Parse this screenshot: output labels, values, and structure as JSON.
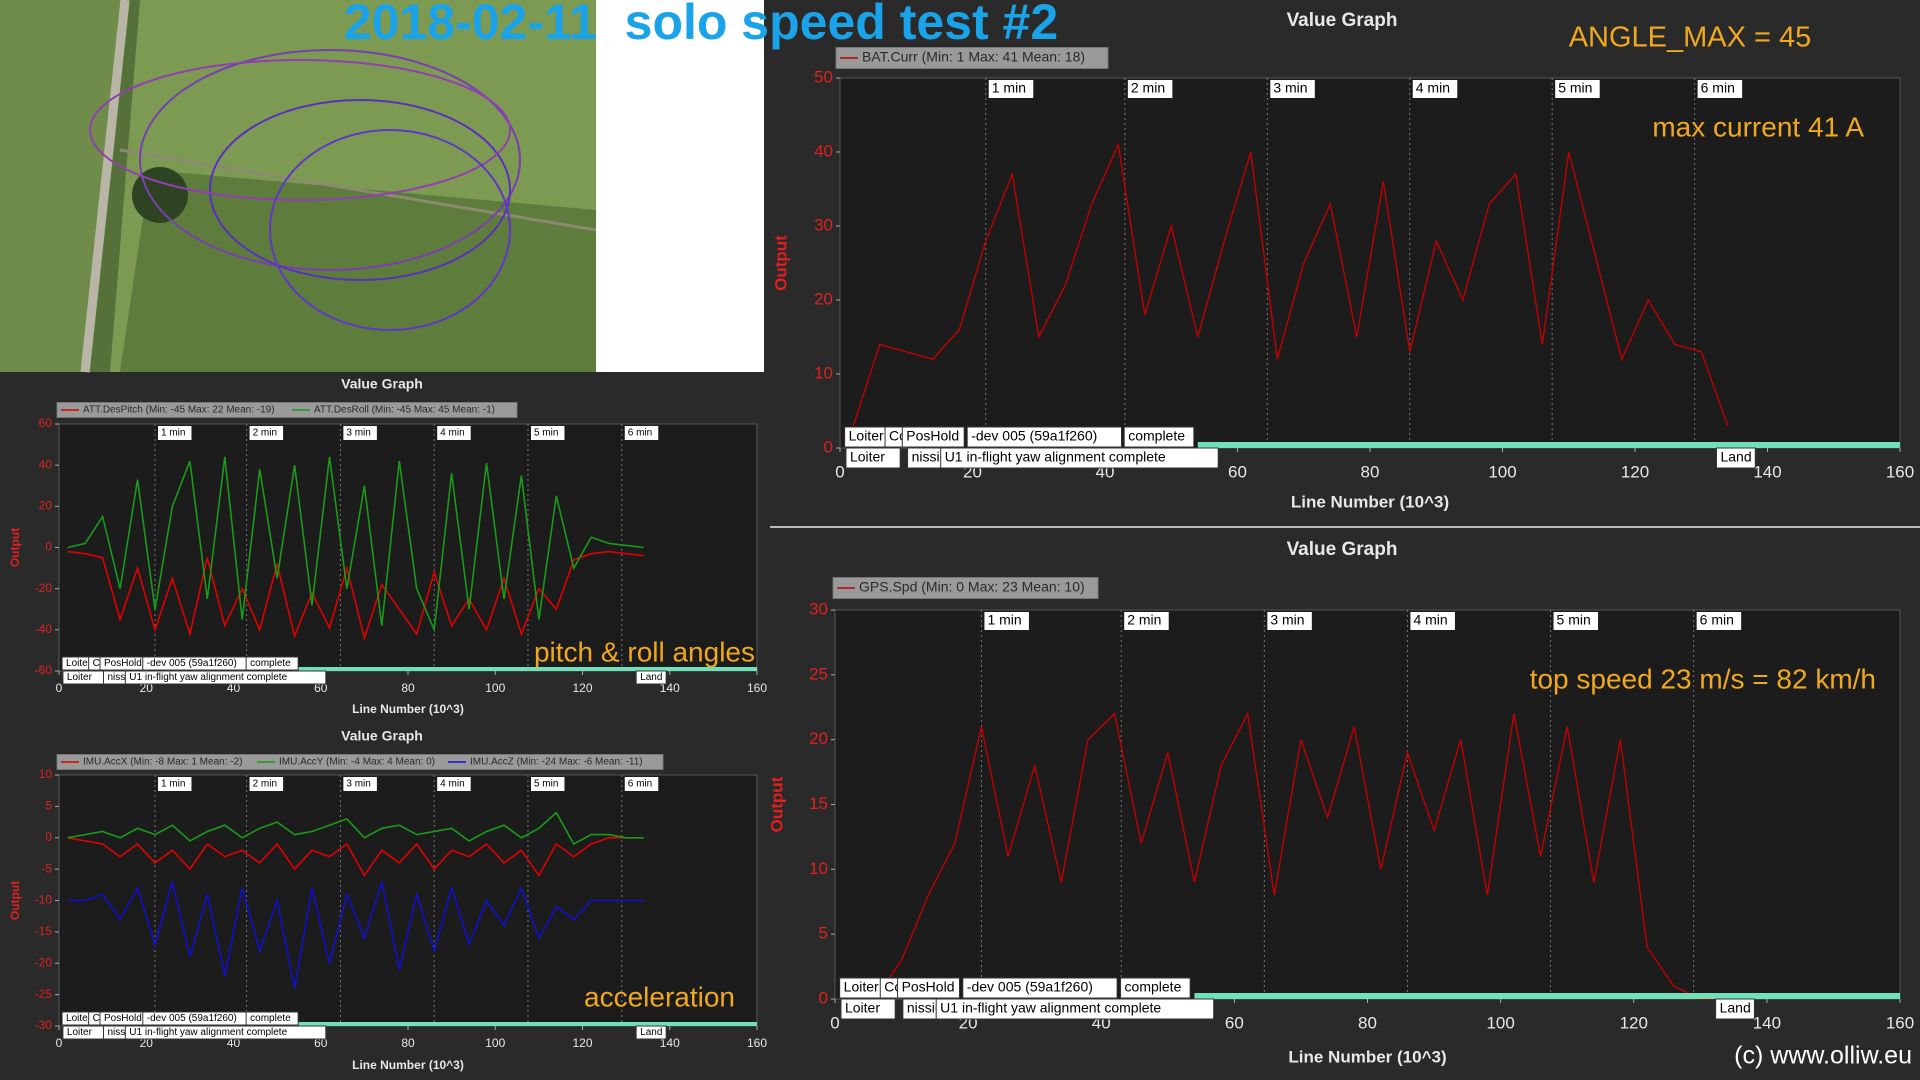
{
  "title": "2018-02-11  solo speed test #2",
  "angle_note": "ANGLE_MAX = 45",
  "credit": "(c) www.olliw.eu",
  "chart_data": [
    {
      "type": "line",
      "title": "Value Graph",
      "xlabel": "Line Number (10^3)",
      "ylabel": "Output",
      "annotation": "max current 41 A",
      "xlim": [
        0,
        160
      ],
      "xticks": [
        0,
        20,
        40,
        60,
        80,
        100,
        120,
        140,
        160
      ],
      "ylim": [
        0,
        50
      ],
      "yticks": [
        0,
        10,
        20,
        30,
        40,
        50
      ],
      "x": [
        2,
        6,
        10,
        14,
        18,
        22,
        26,
        30,
        34,
        38,
        42,
        46,
        50,
        54,
        58,
        62,
        66,
        70,
        74,
        78,
        82,
        86,
        90,
        94,
        98,
        102,
        106,
        110,
        114,
        118,
        122,
        126,
        130,
        134
      ],
      "series": [
        {
          "name": "BAT.Curr (Min: 1 Max: 41 Mean: 18)",
          "color": "#c00000",
          "values": [
            3,
            14,
            13,
            12,
            16,
            28,
            37,
            15,
            22,
            33,
            41,
            18,
            30,
            15,
            28,
            40,
            12,
            25,
            33,
            15,
            36,
            13,
            28,
            20,
            33,
            37,
            14,
            40,
            26,
            12,
            20,
            14,
            13,
            3
          ]
        }
      ],
      "markers": [
        {
          "x": 22,
          "label": "1 min"
        },
        {
          "x": 43,
          "label": "2 min"
        },
        {
          "x": 64.5,
          "label": "3 min"
        },
        {
          "x": 86,
          "label": "4 min"
        },
        {
          "x": 107.5,
          "label": "5 min"
        },
        {
          "x": 129,
          "label": "6 min"
        }
      ],
      "mode_bar": [
        54,
        160
      ],
      "events_row1": [
        {
          "x": 0.7,
          "label": "Loiter"
        },
        {
          "x": 6.8,
          "label": "Cc"
        },
        {
          "x": 9.4,
          "label": "PosHold"
        },
        {
          "x": 19.2,
          "label": "-dev 005 (59a1f260)"
        },
        {
          "x": 42.9,
          "label": "complete"
        }
      ],
      "events_row2": [
        {
          "x": 0.9,
          "label": "Loiter"
        },
        {
          "x": 10.2,
          "label": "nission"
        },
        {
          "x": 15.2,
          "label": "U1 in-flight yaw alignment complete"
        },
        {
          "x": 132.3,
          "label": "Land"
        }
      ]
    },
    {
      "type": "line",
      "title": "Value Graph",
      "xlabel": "Line Number (10^3)",
      "ylabel": "Output",
      "annotation": "top speed 23 m/s = 82 km/h",
      "xlim": [
        0,
        160
      ],
      "xticks": [
        0,
        20,
        40,
        60,
        80,
        100,
        120,
        140,
        160
      ],
      "ylim": [
        0,
        30
      ],
      "yticks": [
        0,
        5,
        10,
        15,
        20,
        25,
        30
      ],
      "x": [
        2,
        6,
        10,
        14,
        18,
        22,
        26,
        30,
        34,
        38,
        42,
        46,
        50,
        54,
        58,
        62,
        66,
        70,
        74,
        78,
        82,
        86,
        90,
        94,
        98,
        102,
        106,
        110,
        114,
        118,
        122,
        126,
        130,
        134
      ],
      "series": [
        {
          "name": "GPS.Spd (Min: 0 Max: 23 Mean: 10)",
          "color": "#c00000",
          "values": [
            0,
            0,
            3,
            8,
            12,
            21,
            11,
            18,
            9,
            20,
            22,
            12,
            19,
            9,
            18,
            22,
            8,
            20,
            14,
            21,
            10,
            19,
            13,
            20,
            8,
            22,
            11,
            21,
            9,
            20,
            4,
            1,
            0,
            0
          ]
        }
      ],
      "markers": [
        {
          "x": 22,
          "label": "1 min"
        },
        {
          "x": 43,
          "label": "2 min"
        },
        {
          "x": 64.5,
          "label": "3 min"
        },
        {
          "x": 86,
          "label": "4 min"
        },
        {
          "x": 107.5,
          "label": "5 min"
        },
        {
          "x": 129,
          "label": "6 min"
        }
      ],
      "mode_bar": [
        54,
        160
      ],
      "events_row1": [
        {
          "x": 0.7,
          "label": "Loiter"
        },
        {
          "x": 6.8,
          "label": "Cc"
        },
        {
          "x": 9.4,
          "label": "PosHold"
        },
        {
          "x": 19.2,
          "label": "-dev 005 (59a1f260)"
        },
        {
          "x": 42.9,
          "label": "complete"
        }
      ],
      "events_row2": [
        {
          "x": 0.9,
          "label": "Loiter"
        },
        {
          "x": 10.2,
          "label": "nission"
        },
        {
          "x": 15.2,
          "label": "U1 in-flight yaw alignment complete"
        },
        {
          "x": 132.3,
          "label": "Land"
        }
      ]
    },
    {
      "type": "line",
      "title": "Value Graph",
      "xlabel": "Line Number (10^3)",
      "ylabel": "Output",
      "annotation": "pitch & roll angles",
      "xlim": [
        0,
        160
      ],
      "xticks": [
        0,
        20,
        40,
        60,
        80,
        100,
        120,
        140,
        160
      ],
      "ylim": [
        -60,
        60
      ],
      "yticks": [
        -60,
        -40,
        -20,
        0,
        20,
        40,
        60
      ],
      "x": [
        2,
        6,
        10,
        14,
        18,
        22,
        26,
        30,
        34,
        38,
        42,
        46,
        50,
        54,
        58,
        62,
        66,
        70,
        74,
        78,
        82,
        86,
        90,
        94,
        98,
        102,
        106,
        110,
        114,
        118,
        122,
        126,
        130,
        134
      ],
      "series": [
        {
          "name": "ATT.DesPitch (Min: -45 Max: 22 Mean: -19)",
          "color": "#e00000",
          "values": [
            -2,
            -3,
            -5,
            -35,
            -10,
            -40,
            -15,
            -42,
            -5,
            -38,
            -20,
            -40,
            -8,
            -43,
            -22,
            -39,
            -10,
            -44,
            -18,
            -30,
            -42,
            -12,
            -38,
            -25,
            -40,
            -15,
            -42,
            -20,
            -30,
            -6,
            -3,
            -2,
            -3,
            -4
          ]
        },
        {
          "name": "ATT.DesRoll (Min: -45 Max: 45 Mean: -1)",
          "color": "#1a9a1a",
          "values": [
            0,
            2,
            15,
            -20,
            33,
            -30,
            20,
            42,
            -25,
            44,
            -35,
            38,
            -15,
            40,
            -28,
            44,
            -20,
            30,
            -38,
            42,
            -20,
            -40,
            36,
            -30,
            41,
            -25,
            35,
            -35,
            25,
            -10,
            5,
            2,
            1,
            0
          ]
        }
      ],
      "markers": [
        {
          "x": 22,
          "label": "1 min"
        },
        {
          "x": 43,
          "label": "2 min"
        },
        {
          "x": 64.5,
          "label": "3 min"
        },
        {
          "x": 86,
          "label": "4 min"
        },
        {
          "x": 107.5,
          "label": "5 min"
        },
        {
          "x": 129,
          "label": "6 min"
        }
      ],
      "mode_bar": [
        54,
        160
      ],
      "events_row1": [
        {
          "x": 0.7,
          "label": "Loiter"
        },
        {
          "x": 6.8,
          "label": "Cc"
        },
        {
          "x": 9.4,
          "label": "PosHold"
        },
        {
          "x": 19.2,
          "label": "-dev 005 (59a1f260)"
        },
        {
          "x": 42.9,
          "label": "complete"
        }
      ],
      "events_row2": [
        {
          "x": 0.9,
          "label": "Loiter"
        },
        {
          "x": 10.2,
          "label": "nission"
        },
        {
          "x": 15.2,
          "label": "U1 in-flight yaw alignment complete"
        },
        {
          "x": 132.3,
          "label": "Land"
        }
      ]
    },
    {
      "type": "line",
      "title": "Value Graph",
      "xlabel": "Line Number (10^3)",
      "ylabel": "Output",
      "annotation": "acceleration",
      "xlim": [
        0,
        160
      ],
      "xticks": [
        0,
        20,
        40,
        60,
        80,
        100,
        120,
        140,
        160
      ],
      "ylim": [
        -30,
        10
      ],
      "yticks": [
        -30,
        -25,
        -20,
        -15,
        -10,
        -5,
        0,
        5,
        10
      ],
      "x": [
        2,
        6,
        10,
        14,
        18,
        22,
        26,
        30,
        34,
        38,
        42,
        46,
        50,
        54,
        58,
        62,
        66,
        70,
        74,
        78,
        82,
        86,
        90,
        94,
        98,
        102,
        106,
        110,
        114,
        118,
        122,
        126,
        130,
        134
      ],
      "series": [
        {
          "name": "IMU.AccX (Min: -8 Max: 1 Mean: -2)",
          "color": "#e00000",
          "values": [
            0,
            -0.5,
            -1,
            -3,
            -1,
            -4,
            -2,
            -5,
            -1,
            -3,
            -2,
            -4,
            -1,
            -5,
            -2,
            -3,
            -1,
            -6,
            -2,
            -4,
            -1,
            -5,
            -2,
            -3,
            -1,
            -4,
            -2,
            -6,
            -1,
            -3,
            -1,
            0,
            0,
            0
          ]
        },
        {
          "name": "IMU.AccY (Min: -4 Max: 4 Mean: 0)",
          "color": "#1a9a1a",
          "values": [
            0,
            0.5,
            1,
            0,
            1.5,
            0.5,
            2,
            -0.5,
            1,
            2,
            0,
            1.5,
            2.5,
            0.5,
            1,
            2,
            3,
            0,
            1.5,
            2,
            0.5,
            1,
            1.5,
            -0.5,
            1,
            2,
            0,
            1.5,
            4,
            -1,
            0.5,
            0.5,
            0,
            0
          ]
        },
        {
          "name": "IMU.AccZ (Min: -24 Max: -6 Mean: -11)",
          "color": "#1010d0",
          "values": [
            -10,
            -10,
            -9,
            -13,
            -8,
            -17,
            -7,
            -19,
            -9,
            -22,
            -8,
            -18,
            -10,
            -24,
            -8,
            -20,
            -9,
            -16,
            -7,
            -21,
            -9,
            -18,
            -8,
            -17,
            -10,
            -14,
            -8,
            -16,
            -11,
            -13,
            -10,
            -10,
            -10,
            -10
          ]
        }
      ],
      "markers": [
        {
          "x": 22,
          "label": "1 min"
        },
        {
          "x": 43,
          "label": "2 min"
        },
        {
          "x": 64.5,
          "label": "3 min"
        },
        {
          "x": 86,
          "label": "4 min"
        },
        {
          "x": 107.5,
          "label": "5 min"
        },
        {
          "x": 129,
          "label": "6 min"
        }
      ],
      "mode_bar": [
        54,
        160
      ],
      "events_row1": [
        {
          "x": 0.7,
          "label": "Loiter"
        },
        {
          "x": 6.8,
          "label": "Cc"
        },
        {
          "x": 9.4,
          "label": "PosHold"
        },
        {
          "x": 19.2,
          "label": "-dev 005 (59a1f260)"
        },
        {
          "x": 42.9,
          "label": "complete"
        }
      ],
      "events_row2": [
        {
          "x": 0.9,
          "label": "Loiter"
        },
        {
          "x": 10.2,
          "label": "nission"
        },
        {
          "x": 15.2,
          "label": "U1 in-flight yaw alignment complete"
        },
        {
          "x": 132.3,
          "label": "Land"
        }
      ]
    }
  ]
}
